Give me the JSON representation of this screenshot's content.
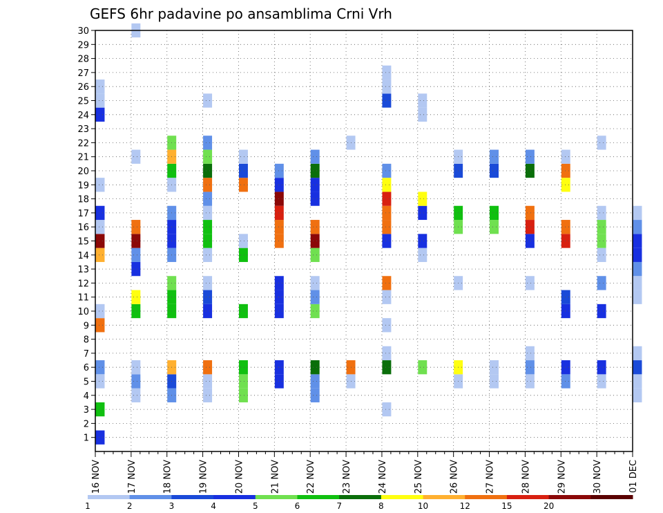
{
  "chart_data": {
    "type": "heatmap",
    "title": "GEFS 6hr padavine po ansamblima Crni Vrh",
    "x_labels": [
      "16 NOV",
      "17 NOV",
      "18 NOV",
      "19 NOV",
      "20 NOV",
      "21 NOV",
      "22 NOV",
      "23 NOV",
      "24 NOV",
      "25 NOV",
      "26 NOV",
      "27 NOV",
      "28 NOV",
      "29 NOV",
      "30 NOV",
      "01 DEC"
    ],
    "y_labels": [
      "1",
      "2",
      "3",
      "4",
      "5",
      "6",
      "7",
      "8",
      "9",
      "10",
      "11",
      "12",
      "13",
      "14",
      "15",
      "16",
      "17",
      "18",
      "19",
      "20",
      "21",
      "22",
      "23",
      "24",
      "25",
      "26",
      "27",
      "28",
      "29",
      "30"
    ],
    "x_steps_per_day": 4,
    "levels": [
      "1",
      "2",
      "3",
      "4",
      "5",
      "6",
      "7",
      "8",
      "10",
      "12",
      "15",
      "20"
    ],
    "colors": [
      "#b3c8f2",
      "#6090e8",
      "#1a4ad8",
      "#1830e0",
      "#70e050",
      "#10c010",
      "#0a6e0a",
      "#ffff10",
      "#ffb030",
      "#f07010",
      "#d82010",
      "#8b0808",
      "#5a0000"
    ],
    "grid": true,
    "cells": [
      [
        0,
        0,
        3
      ],
      [
        0,
        2,
        5
      ],
      [
        0,
        5,
        1
      ],
      [
        0,
        4,
        0
      ],
      [
        0,
        8,
        9
      ],
      [
        0,
        9,
        0
      ],
      [
        0,
        13,
        8
      ],
      [
        0,
        14,
        11
      ],
      [
        0,
        15,
        0
      ],
      [
        0,
        16,
        3
      ],
      [
        0,
        18,
        0
      ],
      [
        0,
        23,
        3
      ],
      [
        0,
        24,
        0
      ],
      [
        0,
        25,
        0
      ],
      [
        1,
        3,
        0
      ],
      [
        1,
        4,
        1
      ],
      [
        1,
        5,
        0
      ],
      [
        1,
        9,
        5
      ],
      [
        1,
        10,
        7
      ],
      [
        1,
        12,
        3
      ],
      [
        1,
        13,
        1
      ],
      [
        1,
        14,
        11
      ],
      [
        1,
        15,
        9
      ],
      [
        1,
        20,
        0
      ],
      [
        1,
        29,
        0
      ],
      [
        2,
        3,
        1
      ],
      [
        2,
        4,
        2
      ],
      [
        2,
        5,
        8
      ],
      [
        2,
        9,
        5
      ],
      [
        2,
        10,
        5
      ],
      [
        2,
        11,
        4
      ],
      [
        2,
        13,
        1
      ],
      [
        2,
        14,
        3
      ],
      [
        2,
        15,
        3
      ],
      [
        2,
        16,
        1
      ],
      [
        2,
        18,
        0
      ],
      [
        2,
        19,
        5
      ],
      [
        2,
        20,
        8
      ],
      [
        2,
        21,
        4
      ],
      [
        3,
        3,
        0
      ],
      [
        3,
        4,
        0
      ],
      [
        3,
        5,
        9
      ],
      [
        3,
        9,
        3
      ],
      [
        3,
        10,
        2
      ],
      [
        3,
        11,
        0
      ],
      [
        3,
        13,
        0
      ],
      [
        3,
        14,
        5
      ],
      [
        3,
        15,
        5
      ],
      [
        3,
        16,
        0
      ],
      [
        3,
        17,
        1
      ],
      [
        3,
        18,
        9
      ],
      [
        3,
        19,
        6
      ],
      [
        3,
        20,
        4
      ],
      [
        3,
        21,
        1
      ],
      [
        3,
        24,
        0
      ],
      [
        4,
        3,
        4
      ],
      [
        4,
        4,
        4
      ],
      [
        4,
        5,
        5
      ],
      [
        4,
        9,
        5
      ],
      [
        4,
        13,
        5
      ],
      [
        4,
        14,
        0
      ],
      [
        4,
        18,
        9
      ],
      [
        4,
        19,
        2
      ],
      [
        4,
        20,
        0
      ],
      [
        5,
        4,
        3
      ],
      [
        5,
        5,
        3
      ],
      [
        5,
        9,
        3
      ],
      [
        5,
        10,
        3
      ],
      [
        5,
        11,
        3
      ],
      [
        5,
        14,
        9
      ],
      [
        5,
        15,
        9
      ],
      [
        5,
        16,
        10
      ],
      [
        5,
        17,
        11
      ],
      [
        5,
        18,
        3
      ],
      [
        5,
        19,
        1
      ],
      [
        6,
        3,
        1
      ],
      [
        6,
        4,
        1
      ],
      [
        6,
        5,
        6
      ],
      [
        6,
        9,
        4
      ],
      [
        6,
        10,
        1
      ],
      [
        6,
        11,
        0
      ],
      [
        6,
        13,
        4
      ],
      [
        6,
        14,
        11
      ],
      [
        6,
        15,
        9
      ],
      [
        6,
        17,
        3
      ],
      [
        6,
        18,
        3
      ],
      [
        6,
        19,
        6
      ],
      [
        6,
        20,
        1
      ],
      [
        7,
        4,
        0
      ],
      [
        7,
        5,
        9
      ],
      [
        7,
        21,
        0
      ],
      [
        8,
        2,
        0
      ],
      [
        8,
        5,
        6
      ],
      [
        8,
        6,
        0
      ],
      [
        8,
        8,
        0
      ],
      [
        8,
        10,
        0
      ],
      [
        8,
        11,
        9
      ],
      [
        8,
        14,
        3
      ],
      [
        8,
        15,
        9
      ],
      [
        8,
        16,
        9
      ],
      [
        8,
        17,
        10
      ],
      [
        8,
        18,
        7
      ],
      [
        8,
        19,
        1
      ],
      [
        8,
        24,
        2
      ],
      [
        8,
        25,
        0
      ],
      [
        8,
        26,
        0
      ],
      [
        9,
        5,
        4
      ],
      [
        9,
        13,
        0
      ],
      [
        9,
        14,
        3
      ],
      [
        9,
        16,
        3
      ],
      [
        9,
        17,
        7
      ],
      [
        9,
        23,
        0
      ],
      [
        9,
        24,
        0
      ],
      [
        10,
        4,
        0
      ],
      [
        10,
        5,
        7
      ],
      [
        10,
        11,
        0
      ],
      [
        10,
        15,
        4
      ],
      [
        10,
        16,
        5
      ],
      [
        10,
        19,
        2
      ],
      [
        10,
        20,
        0
      ],
      [
        11,
        4,
        0
      ],
      [
        11,
        5,
        0
      ],
      [
        11,
        15,
        4
      ],
      [
        11,
        16,
        5
      ],
      [
        11,
        19,
        2
      ],
      [
        11,
        20,
        1
      ],
      [
        12,
        4,
        0
      ],
      [
        12,
        5,
        1
      ],
      [
        12,
        6,
        0
      ],
      [
        12,
        11,
        0
      ],
      [
        12,
        14,
        3
      ],
      [
        12,
        15,
        10
      ],
      [
        12,
        16,
        9
      ],
      [
        12,
        19,
        6
      ],
      [
        12,
        20,
        1
      ],
      [
        13,
        4,
        1
      ],
      [
        13,
        5,
        3
      ],
      [
        13,
        9,
        3
      ],
      [
        13,
        10,
        2
      ],
      [
        13,
        14,
        10
      ],
      [
        13,
        15,
        9
      ],
      [
        13,
        18,
        7
      ],
      [
        13,
        19,
        9
      ],
      [
        13,
        20,
        0
      ],
      [
        14,
        4,
        0
      ],
      [
        14,
        5,
        3
      ],
      [
        14,
        9,
        3
      ],
      [
        14,
        11,
        1
      ],
      [
        14,
        13,
        0
      ],
      [
        14,
        14,
        4
      ],
      [
        14,
        15,
        4
      ],
      [
        14,
        16,
        0
      ],
      [
        14,
        21,
        0
      ],
      [
        15,
        3,
        0
      ],
      [
        15,
        4,
        0
      ],
      [
        15,
        5,
        2
      ],
      [
        15,
        6,
        0
      ],
      [
        15,
        10,
        0
      ],
      [
        15,
        11,
        0
      ],
      [
        15,
        12,
        1
      ],
      [
        15,
        13,
        3
      ],
      [
        15,
        14,
        3
      ],
      [
        15,
        15,
        1
      ],
      [
        15,
        16,
        0
      ]
    ]
  }
}
